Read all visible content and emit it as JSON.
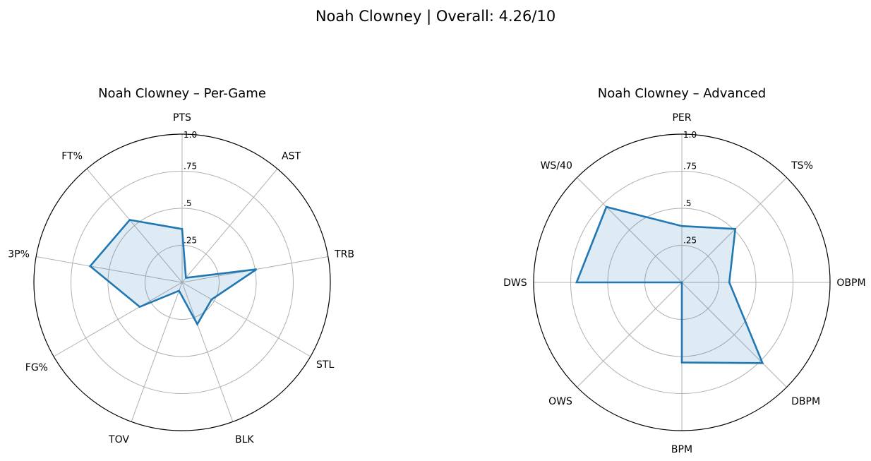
{
  "figure": {
    "title": "Noah Clowney | Overall: 4.26/10"
  },
  "colors": {
    "line": "#1f77b4",
    "fill": "#1f77b4",
    "grid": "#b0b0b0",
    "frame": "#000000"
  },
  "chart_data": [
    {
      "type": "radar",
      "title": "Noah Clowney – Per-Game",
      "categories": [
        "PTS",
        "AST",
        "TRB",
        "STL",
        "BLK",
        "TOV",
        "FG%",
        "3P%",
        "FT%"
      ],
      "values": [
        0.36,
        0.04,
        0.51,
        0.23,
        0.3,
        0.06,
        0.33,
        0.63,
        0.55
      ],
      "rlim": [
        0,
        1.0
      ],
      "rticks": [
        0.25,
        0.5,
        0.75,
        1.0
      ],
      "rtick_labels": [
        ".25",
        ".5",
        ".75",
        "1.0"
      ],
      "grid": true,
      "start": "top",
      "direction": "clockwise"
    },
    {
      "type": "radar",
      "title": "Noah Clowney – Advanced",
      "categories": [
        "PER",
        "TS%",
        "OBPM",
        "DBPM",
        "BPM",
        "OWS",
        "DWS",
        "WS/40"
      ],
      "values": [
        0.38,
        0.51,
        0.32,
        0.77,
        0.54,
        0.0,
        0.71,
        0.72
      ],
      "rlim": [
        0,
        1.0
      ],
      "rticks": [
        0.25,
        0.5,
        0.75,
        1.0
      ],
      "rtick_labels": [
        ".25",
        ".5",
        ".75",
        "1.0"
      ],
      "grid": true,
      "start": "top",
      "direction": "clockwise"
    }
  ]
}
